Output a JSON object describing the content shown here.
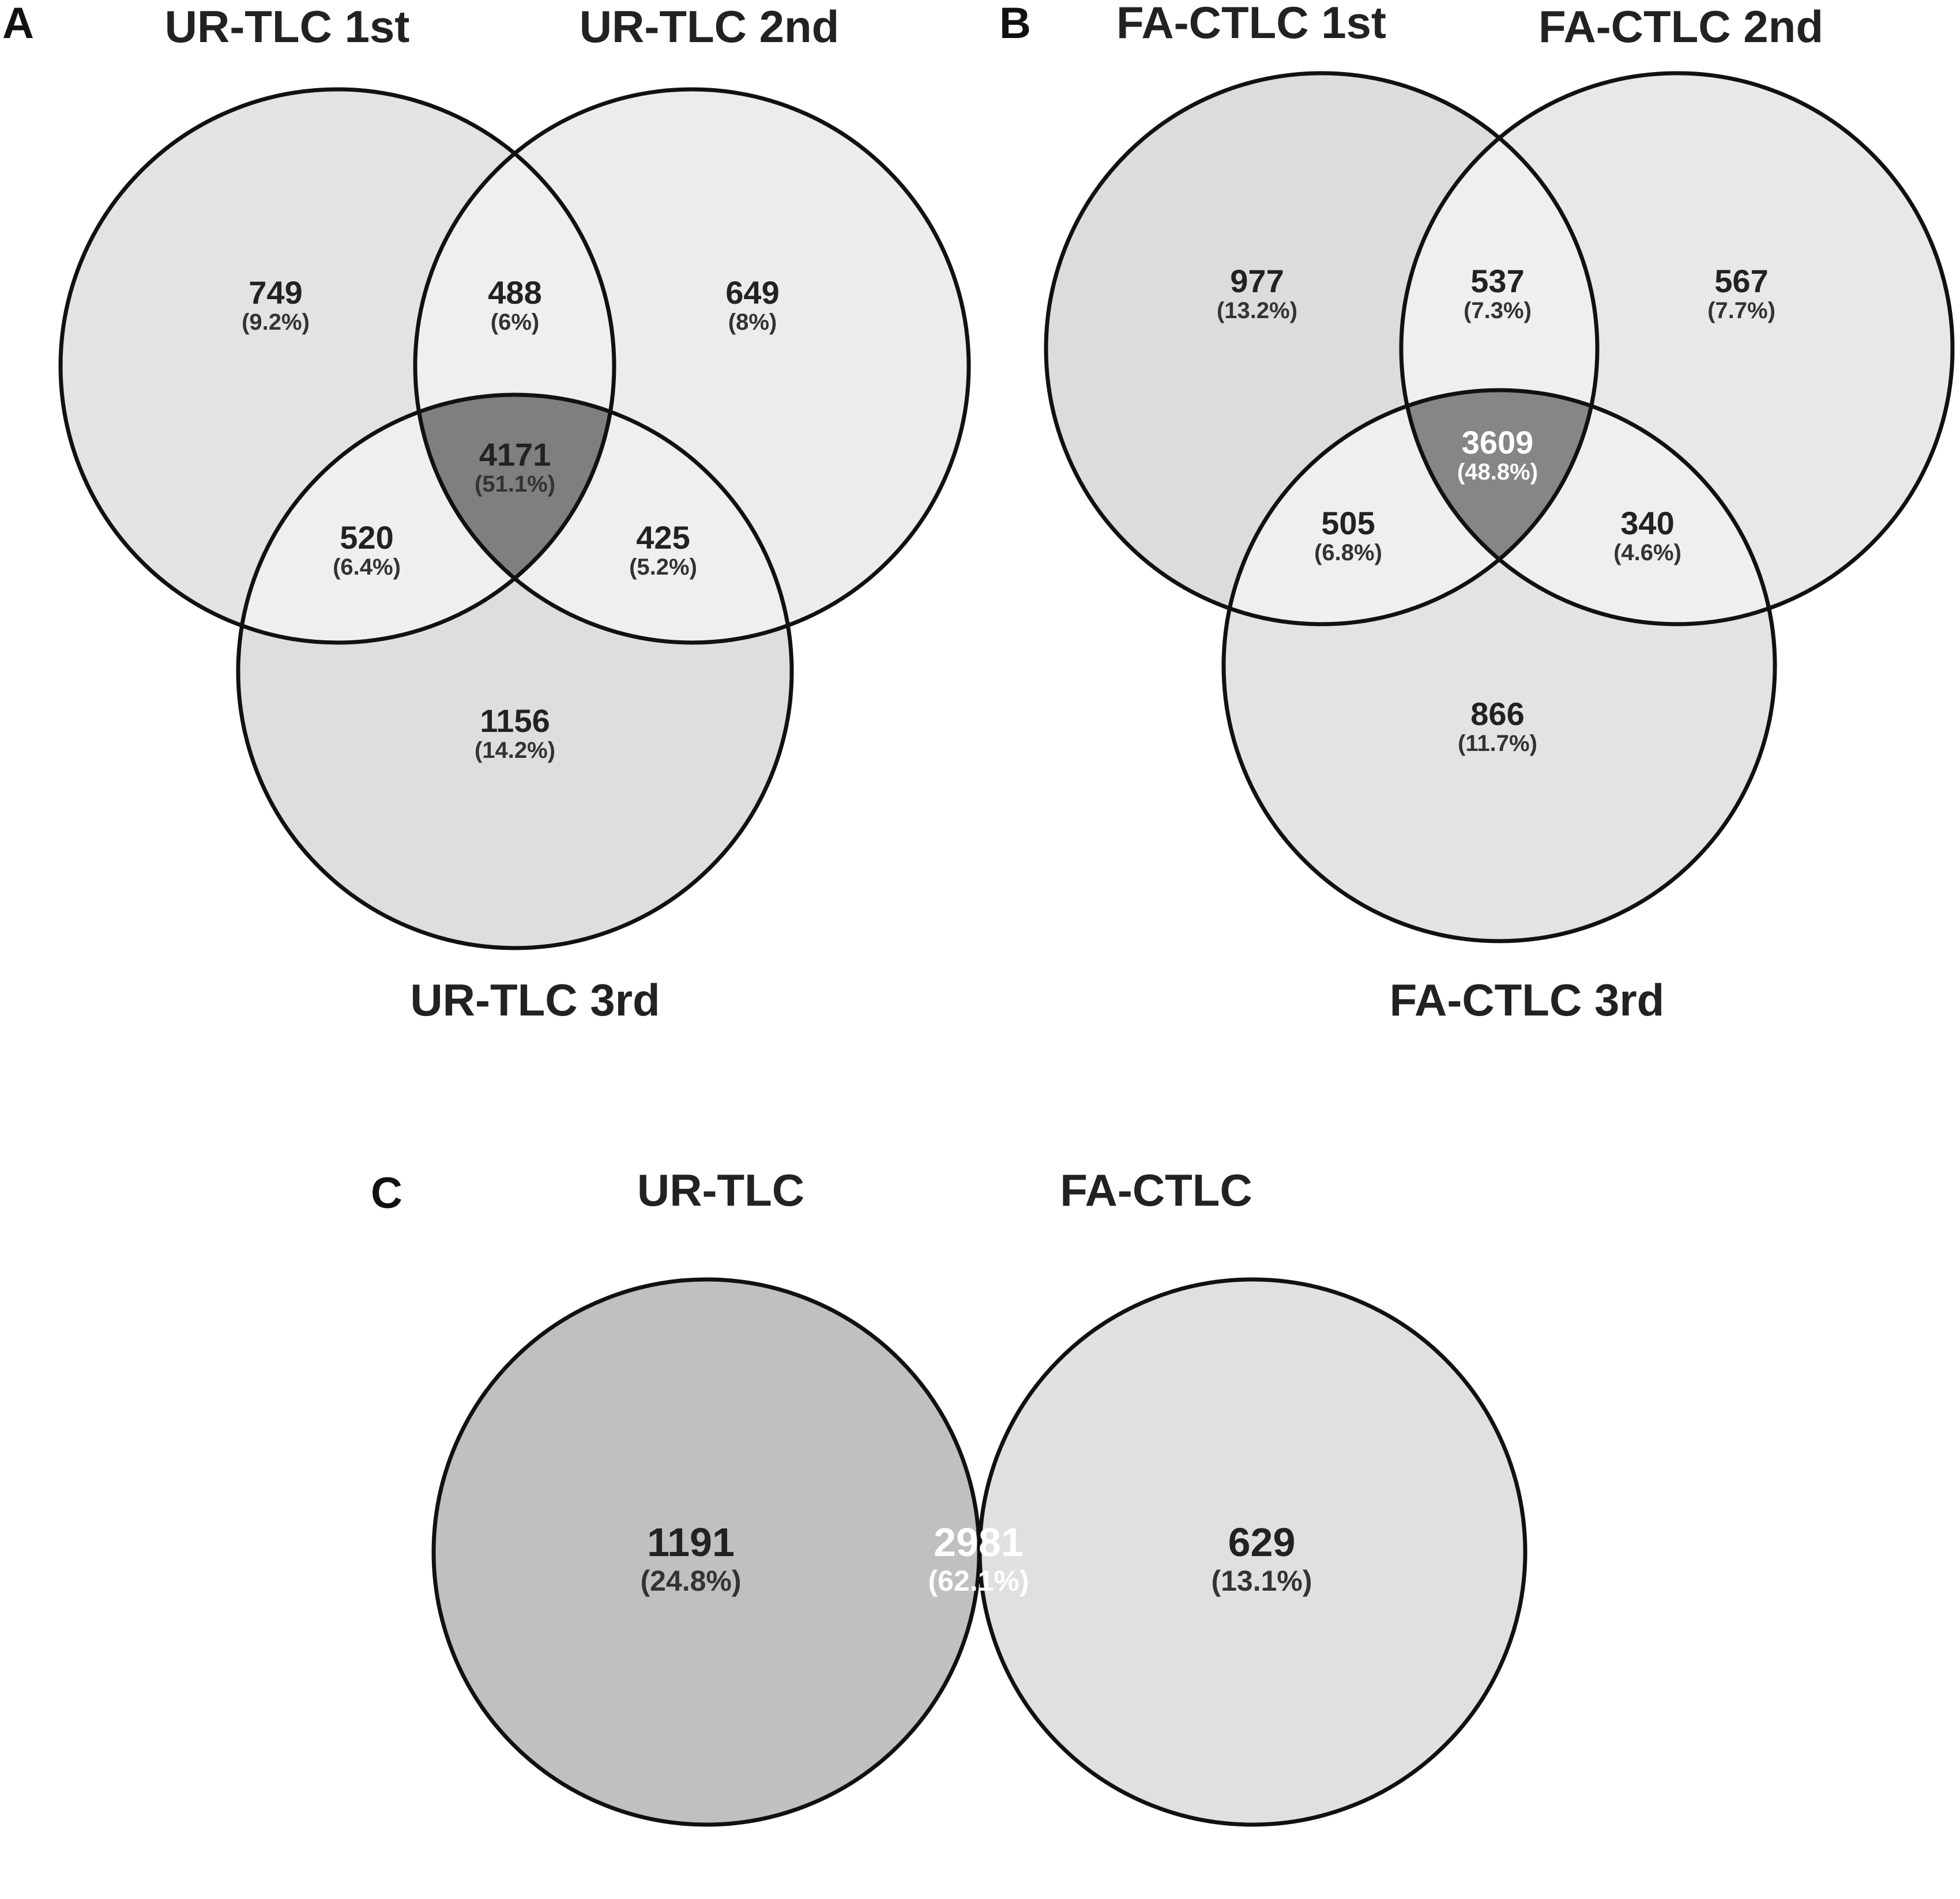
{
  "panels": [
    {
      "letter": "A",
      "sets": [
        "UR-TLC 1st",
        "UR-TLC 2nd",
        "UR-TLC 3rd"
      ],
      "regions": [
        {
          "id": "only_1",
          "count": "749",
          "percent": "(9.2%)"
        },
        {
          "id": "only_2",
          "count": "649",
          "percent": "(8%)"
        },
        {
          "id": "only_3",
          "count": "1156",
          "percent": "(14.2%)"
        },
        {
          "id": "1_2",
          "count": "488",
          "percent": "(6%)"
        },
        {
          "id": "1_3",
          "count": "520",
          "percent": "(6.4%)"
        },
        {
          "id": "2_3",
          "count": "425",
          "percent": "(5.2%)"
        },
        {
          "id": "1_2_3",
          "count": "4171",
          "percent": "(51.1%)"
        }
      ],
      "colors": {
        "set1": "#e3e3e3",
        "set2": "#ececec",
        "set3": "#dedede",
        "pair": "#efefef",
        "center": "#7f7f7f"
      }
    },
    {
      "letter": "B",
      "sets": [
        "FA-CTLC 1st",
        "FA-CTLC 2nd",
        "FA-CTLC 3rd"
      ],
      "regions": [
        {
          "id": "only_1",
          "count": "977",
          "percent": "(13.2%)"
        },
        {
          "id": "only_2",
          "count": "567",
          "percent": "(7.7%)"
        },
        {
          "id": "only_3",
          "count": "866",
          "percent": "(11.7%)"
        },
        {
          "id": "1_2",
          "count": "537",
          "percent": "(7.3%)"
        },
        {
          "id": "1_3",
          "count": "505",
          "percent": "(6.8%)"
        },
        {
          "id": "2_3",
          "count": "340",
          "percent": "(4.6%)"
        },
        {
          "id": "1_2_3",
          "count": "3609",
          "percent": "(48.8%)"
        }
      ],
      "colors": {
        "set1": "#dcdcdc",
        "set2": "#e8e8e8",
        "set3": "#e3e3e3",
        "pair": "#efefef",
        "center": "#868686"
      }
    },
    {
      "letter": "C",
      "sets": [
        "UR-TLC",
        "FA-CTLC"
      ],
      "regions": [
        {
          "id": "only_1",
          "count": "1191",
          "percent": "(24.8%)"
        },
        {
          "id": "1_2",
          "count": "2981",
          "percent": "(62.1%)"
        },
        {
          "id": "only_2",
          "count": "629",
          "percent": "(13.1%)"
        }
      ],
      "colors": {
        "set1": "#c0c0c0",
        "set2": "#e0e0e0",
        "center": "#636363"
      }
    }
  ]
}
